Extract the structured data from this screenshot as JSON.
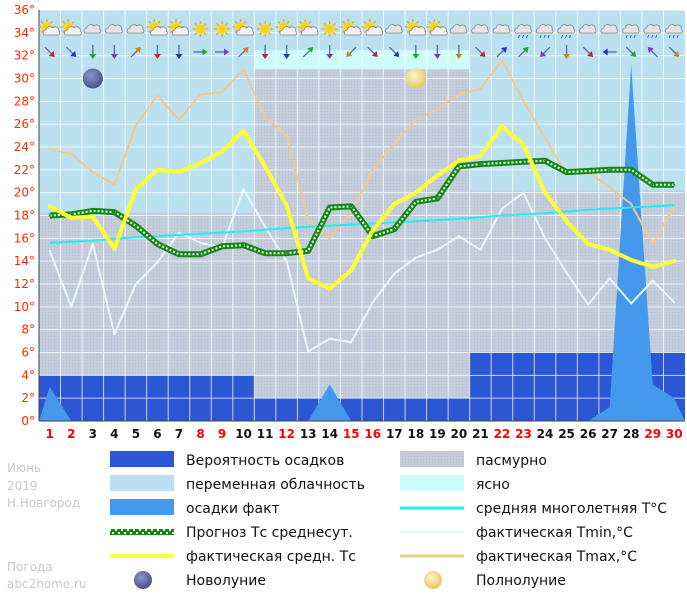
{
  "chart_data": {
    "type": "line",
    "title": "",
    "xlabel": "",
    "ylabel": "",
    "ylim": [
      0,
      36
    ],
    "y_ticks": [
      "0°",
      "2°",
      "4°",
      "6°",
      "8°",
      "10°",
      "12°",
      "14°",
      "16°",
      "18°",
      "20°",
      "22°",
      "24°",
      "26°",
      "28°",
      "30°",
      "32°",
      "34°",
      "36°"
    ],
    "x": [
      1,
      2,
      3,
      4,
      5,
      6,
      7,
      8,
      9,
      10,
      11,
      12,
      13,
      14,
      15,
      16,
      17,
      18,
      19,
      20,
      21,
      22,
      23,
      24,
      25,
      26,
      27,
      28,
      29,
      30
    ],
    "x_labels": [
      "1",
      "2",
      "3",
      "4",
      "5",
      "6",
      "7",
      "8",
      "9",
      "10",
      "11",
      "12",
      "13",
      "14",
      "15",
      "16",
      "17",
      "18",
      "19",
      "20",
      "21",
      "22",
      "23",
      "24",
      "25",
      "26",
      "27",
      "28",
      "29",
      "30"
    ],
    "red_days": [
      1,
      2,
      8,
      9,
      12,
      15,
      16,
      22,
      23,
      29,
      30
    ],
    "grid": true,
    "cloud_bands": [
      {
        "from_day": 1,
        "to_day": 10,
        "type": "переменная облачность"
      },
      {
        "from_day": 10,
        "to_day": 20,
        "type": "ясно",
        "min": 30.8
      },
      {
        "from_day": 20,
        "to_day": 30,
        "type": "переменная облачность"
      }
    ],
    "overcast_blocks": [
      {
        "from_day": 1,
        "to_day": 10,
        "max": 18.2
      },
      {
        "from_day": 10,
        "to_day": 20,
        "max": 30.8
      },
      {
        "from_day": 20,
        "to_day": 30,
        "max": 20.2
      }
    ],
    "precip_probability_blocks": [
      {
        "from_day": 1,
        "to_day": 10,
        "value": 4
      },
      {
        "from_day": 10,
        "to_day": 20,
        "value": 2
      },
      {
        "from_day": 20,
        "to_day": 30,
        "value": 6
      }
    ],
    "series": [
      {
        "name": "осадки факт",
        "kind": "area",
        "color": "#4499ee",
        "points": [
          [
            0.5,
            0
          ],
          [
            1,
            3
          ],
          [
            2,
            0
          ],
          [
            3,
            0
          ],
          [
            4,
            0
          ],
          [
            5,
            0
          ],
          [
            6,
            0
          ],
          [
            7,
            0
          ],
          [
            8,
            0
          ],
          [
            9,
            0
          ],
          [
            10,
            0
          ],
          [
            11,
            0
          ],
          [
            12,
            0
          ],
          [
            13,
            0
          ],
          [
            14,
            3.2
          ],
          [
            15,
            0
          ],
          [
            16,
            0
          ],
          [
            17,
            0
          ],
          [
            18,
            0
          ],
          [
            19,
            0
          ],
          [
            20,
            0
          ],
          [
            21,
            0
          ],
          [
            22,
            0
          ],
          [
            23,
            0
          ],
          [
            24,
            0
          ],
          [
            25,
            0
          ],
          [
            26,
            0
          ],
          [
            27,
            1.2
          ],
          [
            28,
            31.2
          ],
          [
            29,
            3.2
          ],
          [
            30,
            2
          ]
        ]
      },
      {
        "name": "фактическая Tmax,°C",
        "kind": "line",
        "color": "#f5c888",
        "values": [
          23.8,
          23.4,
          21.8,
          20.7,
          25.9,
          28.5,
          26.4,
          28.6,
          28.8,
          30.8,
          26.6,
          25.0,
          17.6,
          16.0,
          18.3,
          22.0,
          24.3,
          26.4,
          27.3,
          28.6,
          29.1,
          31.6,
          28.0,
          24.8,
          21.6,
          21.8,
          20.5,
          19.0,
          15.5,
          18.8
        ]
      },
      {
        "name": "фактическая Tmin,°C",
        "kind": "line",
        "color": "#e6f8fa",
        "values": [
          14.9,
          10.0,
          15.5,
          7.6,
          12.0,
          13.9,
          16.5,
          15.6,
          15.2,
          20.3,
          17.0,
          14.0,
          6.1,
          7.2,
          6.9,
          10.4,
          12.9,
          14.3,
          15.0,
          16.2,
          15.0,
          18.6,
          20.0,
          16.0,
          13.0,
          10.2,
          12.5,
          10.3,
          12.3,
          10.4
        ]
      },
      {
        "name": "средняя многолетняя T°C",
        "kind": "line",
        "color": "#22eeee",
        "values": [
          15.6,
          15.7,
          15.8,
          15.95,
          16.1,
          16.2,
          16.3,
          16.4,
          16.5,
          16.6,
          16.75,
          16.9,
          17.0,
          17.1,
          17.2,
          17.3,
          17.4,
          17.5,
          17.6,
          17.7,
          17.85,
          18.0,
          18.1,
          18.2,
          18.35,
          18.5,
          18.6,
          18.7,
          18.8,
          18.9
        ]
      },
      {
        "name": "Прогноз Тс среднесут.",
        "kind": "line",
        "color": "#118811",
        "values": [
          18.0,
          18.1,
          18.4,
          18.3,
          17.1,
          15.5,
          14.6,
          14.6,
          15.3,
          15.4,
          14.7,
          14.7,
          14.9,
          18.7,
          18.8,
          16.2,
          16.8,
          19.2,
          19.5,
          22.3,
          22.5,
          22.6,
          22.7,
          22.8,
          21.8,
          21.9,
          22.0,
          22.0,
          20.7,
          20.7
        ]
      },
      {
        "name": "фактическая средн. Тс",
        "kind": "line",
        "color": "#ffff33",
        "values": [
          18.8,
          17.8,
          17.9,
          15.1,
          20.3,
          22.0,
          21.8,
          22.6,
          23.6,
          25.4,
          22.3,
          18.9,
          12.5,
          11.6,
          13.2,
          16.7,
          19.0,
          20.0,
          21.5,
          22.8,
          23.2,
          25.8,
          24.2,
          20.0,
          17.5,
          15.5,
          15.0,
          14.1,
          13.5,
          14.0
        ]
      }
    ],
    "legend": [
      {
        "label": "Вероятность осадков",
        "swatch": "#2b56d4"
      },
      {
        "label": "пасмурно",
        "swatch": "#c3cddc"
      },
      {
        "label": "переменная облачность",
        "swatch": "#bbe0f0"
      },
      {
        "label": "ясно",
        "swatch": "#ccfbfb"
      },
      {
        "label": "осадки факт",
        "swatch": "#4499ee"
      },
      {
        "label": "средняя многолетняя T°C",
        "swatch": "#22eeee"
      },
      {
        "label": "Прогноз Тс среднесут.",
        "swatch": "#118811"
      },
      {
        "label": "фактическая Tmin,°C",
        "swatch": "#e6f8fa"
      },
      {
        "label": "фактическая средн. Тс",
        "swatch": "#ffff33"
      },
      {
        "label": "фактическая Tmax,°C",
        "swatch": "#f5c888"
      },
      {
        "label": "Новолуние",
        "swatch": "new-moon-icon"
      },
      {
        "label": "Полнолуние",
        "swatch": "full-moon-icon"
      }
    ],
    "moon": {
      "new_moon_day": 3,
      "full_moon_day": 18
    },
    "weather_icons": [
      "partly-cloudy",
      "partly-cloudy",
      "cloudy",
      "cloudy",
      "cloudy",
      "partly-cloudy",
      "partly-cloudy",
      "sun",
      "sun",
      "partly-cloudy",
      "sun",
      "partly-cloudy",
      "partly-cloudy",
      "sun",
      "partly-cloudy",
      "partly-cloudy",
      "cloudy",
      "partly-cloudy",
      "partly-cloudy",
      "cloudy",
      "cloudy",
      "cloudy",
      "cloudy-rain",
      "cloudy-rain",
      "cloudy-rain",
      "cloudy",
      "cloudy",
      "cloudy-rain",
      "cloudy-rain",
      "cloudy-rain"
    ],
    "wind_icons": [
      "wind-arrow-se",
      "wind-arrow-se",
      "wind-arrow-s",
      "wind-arrow-s",
      "wind-arrow-ne",
      "wind-arrow-s",
      "wind-arrow-s",
      "wind-arrow-e",
      "wind-arrow-e",
      "wind-arrow-ne",
      "wind-arrow-s",
      "wind-arrow-s",
      "wind-arrow-ne",
      "wind-arrow-s",
      "wind-arrow-sw",
      "wind-arrow-se",
      "wind-arrow-se",
      "wind-arrow-s",
      "wind-arrow-s",
      "wind-arrow-s",
      "wind-arrow-se",
      "wind-arrow-ne",
      "wind-arrow-ne",
      "wind-arrow-sw",
      "wind-arrow-s",
      "wind-arrow-se",
      "wind-arrow-w",
      "wind-arrow-se",
      "wind-arrow-nw",
      "wind-arrow-se"
    ]
  },
  "side_text": {
    "month": "Июнь",
    "year": "2019",
    "city": "Н.Новгород",
    "site_title": "Погода",
    "site_domain": "abc2home.ru"
  },
  "colors": {
    "background": "#ffffff",
    "red_label": "#ff0000",
    "tick_label": "#ff2a00",
    "probability": "#2b56d4",
    "overcast": "#c3cddc",
    "partly_cloudy": "#bbe0f0",
    "clear": "#ccfbfb",
    "precip": "#4499ee"
  }
}
